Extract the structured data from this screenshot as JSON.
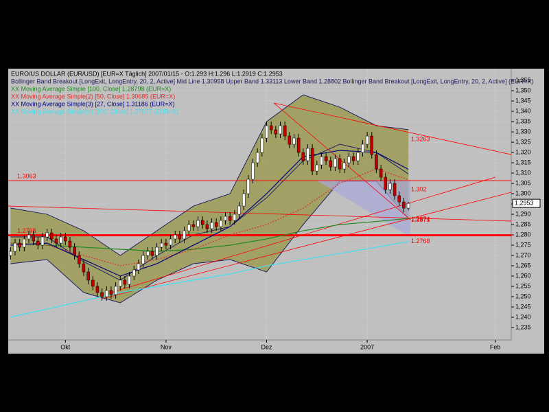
{
  "chart_data": {
    "type": "candlestick",
    "title": "EURO/US DOLLAR (EUR/USD) [EUR=X  Täglich] 2007/01/15 - O:1.293 H:1.296 L:1.2919 C:1.2953",
    "xlim": [
      -0.5,
      109.5
    ],
    "xticks": [
      {
        "value": 12,
        "label": "Okt"
      },
      {
        "value": 34,
        "label": "Nov"
      },
      {
        "value": 56,
        "label": "Dez"
      },
      {
        "value": 78,
        "label": "2007"
      },
      {
        "value": 106,
        "label": "Feb"
      }
    ],
    "ylim": [
      1.229,
      1.3607
    ],
    "yticks": [
      {
        "value": 1.235,
        "label": "1,235"
      },
      {
        "value": 1.24,
        "label": "1,240"
      },
      {
        "value": 1.245,
        "label": "1,245"
      },
      {
        "value": 1.25,
        "label": "1,250"
      },
      {
        "value": 1.255,
        "label": "1,255"
      },
      {
        "value": 1.26,
        "label": "1,260"
      },
      {
        "value": 1.265,
        "label": "1,265"
      },
      {
        "value": 1.27,
        "label": "1,270"
      },
      {
        "value": 1.275,
        "label": "1,275"
      },
      {
        "value": 1.28,
        "label": "1,280"
      },
      {
        "value": 1.285,
        "label": "1,285"
      },
      {
        "value": 1.29,
        "label": "1,290"
      },
      {
        "value": 1.295,
        "label": "1,295"
      },
      {
        "value": 1.3,
        "label": "1,300"
      },
      {
        "value": 1.305,
        "label": "1,305"
      },
      {
        "value": 1.31,
        "label": "1,310"
      },
      {
        "value": 1.315,
        "label": "1,315"
      },
      {
        "value": 1.32,
        "label": "1,320"
      },
      {
        "value": 1.325,
        "label": "1,325"
      },
      {
        "value": 1.33,
        "label": "1,330"
      },
      {
        "value": 1.335,
        "label": "1,335"
      },
      {
        "value": 1.34,
        "label": "1,340"
      },
      {
        "value": 1.345,
        "label": "1,345"
      },
      {
        "value": 1.35,
        "label": "1,350"
      },
      {
        "value": 1.355,
        "label": "1,355"
      }
    ],
    "last_price": {
      "value": 1.2953,
      "label": "1,2953"
    },
    "grid": true,
    "up_color": "#ffffff",
    "down_color": "#c00000",
    "open": [
      1.27,
      1.272,
      1.276,
      1.274,
      1.278,
      1.28,
      1.277,
      1.275,
      1.279,
      1.281,
      1.278,
      1.276,
      1.279,
      1.277,
      1.274,
      1.27,
      1.266,
      1.262,
      1.258,
      1.255,
      1.252,
      1.25,
      1.253,
      1.251,
      1.255,
      1.258,
      1.256,
      1.26,
      1.263,
      1.266,
      1.27,
      1.272,
      1.27,
      1.274,
      1.276,
      1.275,
      1.278,
      1.28,
      1.278,
      1.282,
      1.285,
      1.284,
      1.287,
      1.285,
      1.283,
      1.286,
      1.284,
      1.287,
      1.289,
      1.287,
      1.29,
      1.294,
      1.3,
      1.307,
      1.315,
      1.32,
      1.327,
      1.333,
      1.331,
      1.329,
      1.333,
      1.328,
      1.324,
      1.327,
      1.32,
      1.316,
      1.322,
      1.311,
      1.314,
      1.318,
      1.316,
      1.313,
      1.317,
      1.312,
      1.315,
      1.318,
      1.316,
      1.32,
      1.324,
      1.328,
      1.319,
      1.312,
      1.308,
      1.302,
      1.305,
      1.299,
      1.296,
      1.293
    ],
    "high": [
      1.274,
      1.278,
      1.278,
      1.28,
      1.282,
      1.282,
      1.279,
      1.281,
      1.283,
      1.283,
      1.28,
      1.281,
      1.281,
      1.279,
      1.276,
      1.272,
      1.268,
      1.264,
      1.26,
      1.257,
      1.254,
      1.255,
      1.255,
      1.257,
      1.26,
      1.26,
      1.262,
      1.265,
      1.268,
      1.272,
      1.274,
      1.274,
      1.276,
      1.278,
      1.278,
      1.28,
      1.282,
      1.282,
      1.284,
      1.287,
      1.287,
      1.289,
      1.289,
      1.287,
      1.288,
      1.288,
      1.289,
      1.291,
      1.291,
      1.292,
      1.296,
      1.302,
      1.309,
      1.317,
      1.322,
      1.329,
      1.335,
      1.335,
      1.333,
      1.335,
      1.335,
      1.33,
      1.329,
      1.329,
      1.322,
      1.324,
      1.324,
      1.316,
      1.32,
      1.32,
      1.318,
      1.319,
      1.319,
      1.317,
      1.32,
      1.32,
      1.322,
      1.326,
      1.33,
      1.33,
      1.321,
      1.314,
      1.31,
      1.307,
      1.307,
      1.301,
      1.298,
      1.296
    ],
    "low": [
      1.268,
      1.27,
      1.272,
      1.272,
      1.276,
      1.275,
      1.273,
      1.273,
      1.277,
      1.276,
      1.274,
      1.274,
      1.275,
      1.272,
      1.268,
      1.264,
      1.26,
      1.256,
      1.253,
      1.25,
      1.248,
      1.248,
      1.249,
      1.249,
      1.253,
      1.254,
      1.254,
      1.258,
      1.261,
      1.264,
      1.268,
      1.268,
      1.268,
      1.272,
      1.273,
      1.273,
      1.276,
      1.276,
      1.276,
      1.28,
      1.282,
      1.282,
      1.283,
      1.281,
      1.281,
      1.282,
      1.282,
      1.285,
      1.285,
      1.285,
      1.288,
      1.292,
      1.298,
      1.305,
      1.313,
      1.318,
      1.325,
      1.329,
      1.327,
      1.327,
      1.326,
      1.322,
      1.322,
      1.318,
      1.314,
      1.314,
      1.309,
      1.309,
      1.312,
      1.314,
      1.311,
      1.311,
      1.31,
      1.31,
      1.313,
      1.314,
      1.314,
      1.318,
      1.322,
      1.317,
      1.31,
      1.306,
      1.3,
      1.3,
      1.297,
      1.294,
      1.291,
      1.2919
    ],
    "close": [
      1.272,
      1.276,
      1.274,
      1.278,
      1.28,
      1.277,
      1.275,
      1.279,
      1.281,
      1.278,
      1.276,
      1.279,
      1.277,
      1.274,
      1.27,
      1.266,
      1.262,
      1.258,
      1.255,
      1.252,
      1.25,
      1.253,
      1.251,
      1.255,
      1.258,
      1.256,
      1.26,
      1.263,
      1.266,
      1.27,
      1.272,
      1.27,
      1.274,
      1.276,
      1.275,
      1.278,
      1.28,
      1.278,
      1.282,
      1.285,
      1.284,
      1.287,
      1.285,
      1.283,
      1.286,
      1.284,
      1.287,
      1.289,
      1.287,
      1.29,
      1.294,
      1.3,
      1.307,
      1.315,
      1.32,
      1.327,
      1.333,
      1.331,
      1.329,
      1.333,
      1.328,
      1.324,
      1.327,
      1.32,
      1.316,
      1.322,
      1.311,
      1.314,
      1.318,
      1.316,
      1.313,
      1.317,
      1.312,
      1.315,
      1.318,
      1.316,
      1.32,
      1.324,
      1.328,
      1.319,
      1.312,
      1.308,
      1.302,
      1.305,
      1.299,
      1.296,
      1.293,
      1.2953
    ],
    "band_x": [
      0,
      8,
      16,
      24,
      32,
      40,
      48,
      56,
      64,
      72,
      80,
      87
    ],
    "bollinger": {
      "label": "Bollinger Band Breakout [LongExit, LongEntry, 20, 2, Active] Mid Line 1.30958 Upper Band 1.33113 Lower Band 1.28802 Bollinger Band Breakout [LongExit, LongEntry, 20, 2, Active] (EUR=X)",
      "color": "#202060",
      "fill": "#8c8c2a",
      "upper": [
        1.293,
        1.29,
        1.282,
        1.27,
        1.282,
        1.294,
        1.3,
        1.335,
        1.348,
        1.342,
        1.333,
        1.33113
      ],
      "mid": [
        1.279,
        1.279,
        1.267,
        1.258,
        1.27,
        1.28,
        1.284,
        1.298,
        1.316,
        1.324,
        1.32,
        1.30958
      ],
      "lower": [
        1.266,
        1.268,
        1.252,
        1.247,
        1.258,
        1.266,
        1.268,
        1.262,
        1.285,
        1.306,
        1.306,
        1.28802
      ]
    },
    "series": [
      {
        "name": "XX Moving Average Simple [100, Close] 1.28798 (EUR=X)",
        "color": "#1f8a1f",
        "values": [
          1.276,
          1.275,
          1.274,
          1.273,
          1.272,
          1.273,
          1.275,
          1.278,
          1.282,
          1.285,
          1.2865,
          1.28798
        ]
      },
      {
        "name": "XX Moving Average Simple(2) [50, Close] 1.30685 (EUR=X)",
        "color": "#e03030",
        "values": [
          1.276,
          1.275,
          1.27,
          1.265,
          1.268,
          1.273,
          1.28,
          1.285,
          1.293,
          1.305,
          1.312,
          1.30685
        ]
      },
      {
        "name": "XX Moving Average Simple(3) [27, Close] 1.31186 (EUR=X)",
        "color": "#000080",
        "values": [
          1.275,
          1.276,
          1.268,
          1.26,
          1.266,
          1.275,
          1.284,
          1.3,
          1.318,
          1.321,
          1.32,
          1.31186
        ]
      },
      {
        "name": "XX Moving Average Simple(4) [200, Close] 1.27677 (EUR=X)",
        "color": "#40e0f0",
        "values": [
          1.24,
          1.244,
          1.248,
          1.252,
          1.255,
          1.258,
          1.261,
          1.265,
          1.268,
          1.271,
          1.274,
          1.2768
        ]
      }
    ],
    "levels": [
      {
        "value": 1.3063,
        "width": 1
      },
      {
        "value": 1.2798,
        "width": 3
      }
    ],
    "level_color": "#ff0000",
    "trendlines": [
      {
        "x": [
          57.6,
          109.5
        ],
        "y": [
          1.344,
          1.319
        ]
      },
      {
        "x": [
          -0.5,
          109.5
        ],
        "y": [
          1.294,
          1.2867
        ]
      },
      {
        "x": [
          20,
          109.5
        ],
        "y": [
          1.249,
          1.3007
        ]
      },
      {
        "x": [
          57.6,
          87.5
        ],
        "y": [
          1.344,
          1.2873
        ]
      },
      {
        "x": [
          22,
          106
        ],
        "y": [
          1.252,
          1.308
        ]
      }
    ],
    "price_labels": [
      1.3263,
      1.302,
      1.2871,
      1.2874,
      1.2768
    ]
  }
}
